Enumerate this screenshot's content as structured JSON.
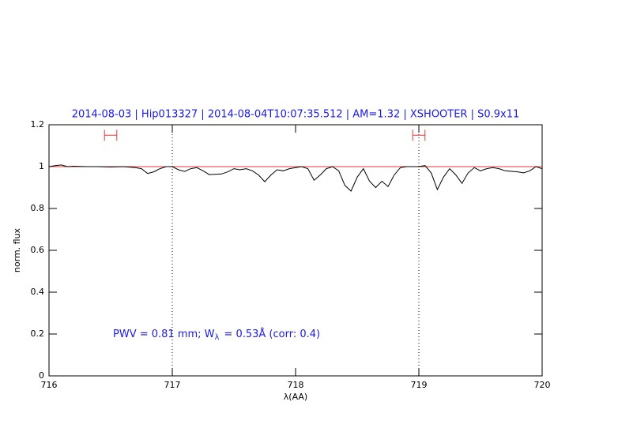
{
  "chart_data": {
    "type": "line",
    "title": "2014-08-03 | Hip013327 | 2014-08-04T10:07:35.512 | AM=1.32 | XSHOOTER | S0.9x11",
    "xlabel": "λ(AA)",
    "ylabel": "norm. flux",
    "annotation": {
      "prefix": "PWV = 0.81 mm; W",
      "subscript": "λ",
      "suffix": "= 0.53Å (corr: 0.4)"
    },
    "xlim": [
      716,
      720
    ],
    "ylim": [
      0,
      1.2
    ],
    "xticks": [
      716,
      717,
      718,
      719,
      720
    ],
    "yticks": [
      0,
      0.2,
      0.4,
      0.6,
      0.8,
      1,
      1.2
    ],
    "vlines": [
      717,
      719
    ],
    "hline": {
      "value": 1,
      "color": "#e8393a"
    },
    "intervals": [
      {
        "x": [
          716.45,
          716.55
        ],
        "y": 1.15,
        "color": "#e8393a"
      },
      {
        "x": [
          718.95,
          719.05
        ],
        "y": 1.15,
        "color": "#e8393a"
      }
    ],
    "series": [
      {
        "color": "#000000",
        "x": [
          716.0,
          716.05,
          716.1,
          716.15,
          716.2,
          716.3,
          716.4,
          716.5,
          716.6,
          716.7,
          716.75,
          716.8,
          716.85,
          716.9,
          716.95,
          717.0,
          717.05,
          717.1,
          717.15,
          717.2,
          717.25,
          717.3,
          717.4,
          717.45,
          717.5,
          717.55,
          717.6,
          717.65,
          717.7,
          717.75,
          717.8,
          717.85,
          717.9,
          717.95,
          718.0,
          718.05,
          718.1,
          718.15,
          718.2,
          718.25,
          718.3,
          718.35,
          718.4,
          718.45,
          718.5,
          718.55,
          718.6,
          718.65,
          718.7,
          718.75,
          718.8,
          718.85,
          718.9,
          718.95,
          719.0,
          719.05,
          719.1,
          719.15,
          719.2,
          719.25,
          719.3,
          719.35,
          719.4,
          719.45,
          719.5,
          719.55,
          719.6,
          719.65,
          719.7,
          719.8,
          719.85,
          719.9,
          719.95,
          720.0
        ],
        "values": [
          1.0,
          1.005,
          1.008,
          1.0,
          1.002,
          1.0,
          1.0,
          0.998,
          1.0,
          0.995,
          0.99,
          0.967,
          0.975,
          0.99,
          1.0,
          1.0,
          0.985,
          0.977,
          0.99,
          0.995,
          0.98,
          0.962,
          0.965,
          0.975,
          0.99,
          0.985,
          0.99,
          0.98,
          0.96,
          0.928,
          0.96,
          0.985,
          0.98,
          0.99,
          0.995,
          1.0,
          0.99,
          0.935,
          0.96,
          0.99,
          1.0,
          0.98,
          0.91,
          0.883,
          0.95,
          0.99,
          0.93,
          0.9,
          0.93,
          0.905,
          0.96,
          0.995,
          1.0,
          1.0,
          1.0,
          1.005,
          0.97,
          0.89,
          0.95,
          0.99,
          0.96,
          0.92,
          0.97,
          0.995,
          0.98,
          0.99,
          0.995,
          0.99,
          0.98,
          0.975,
          0.97,
          0.98,
          1.0,
          0.99
        ]
      }
    ]
  }
}
